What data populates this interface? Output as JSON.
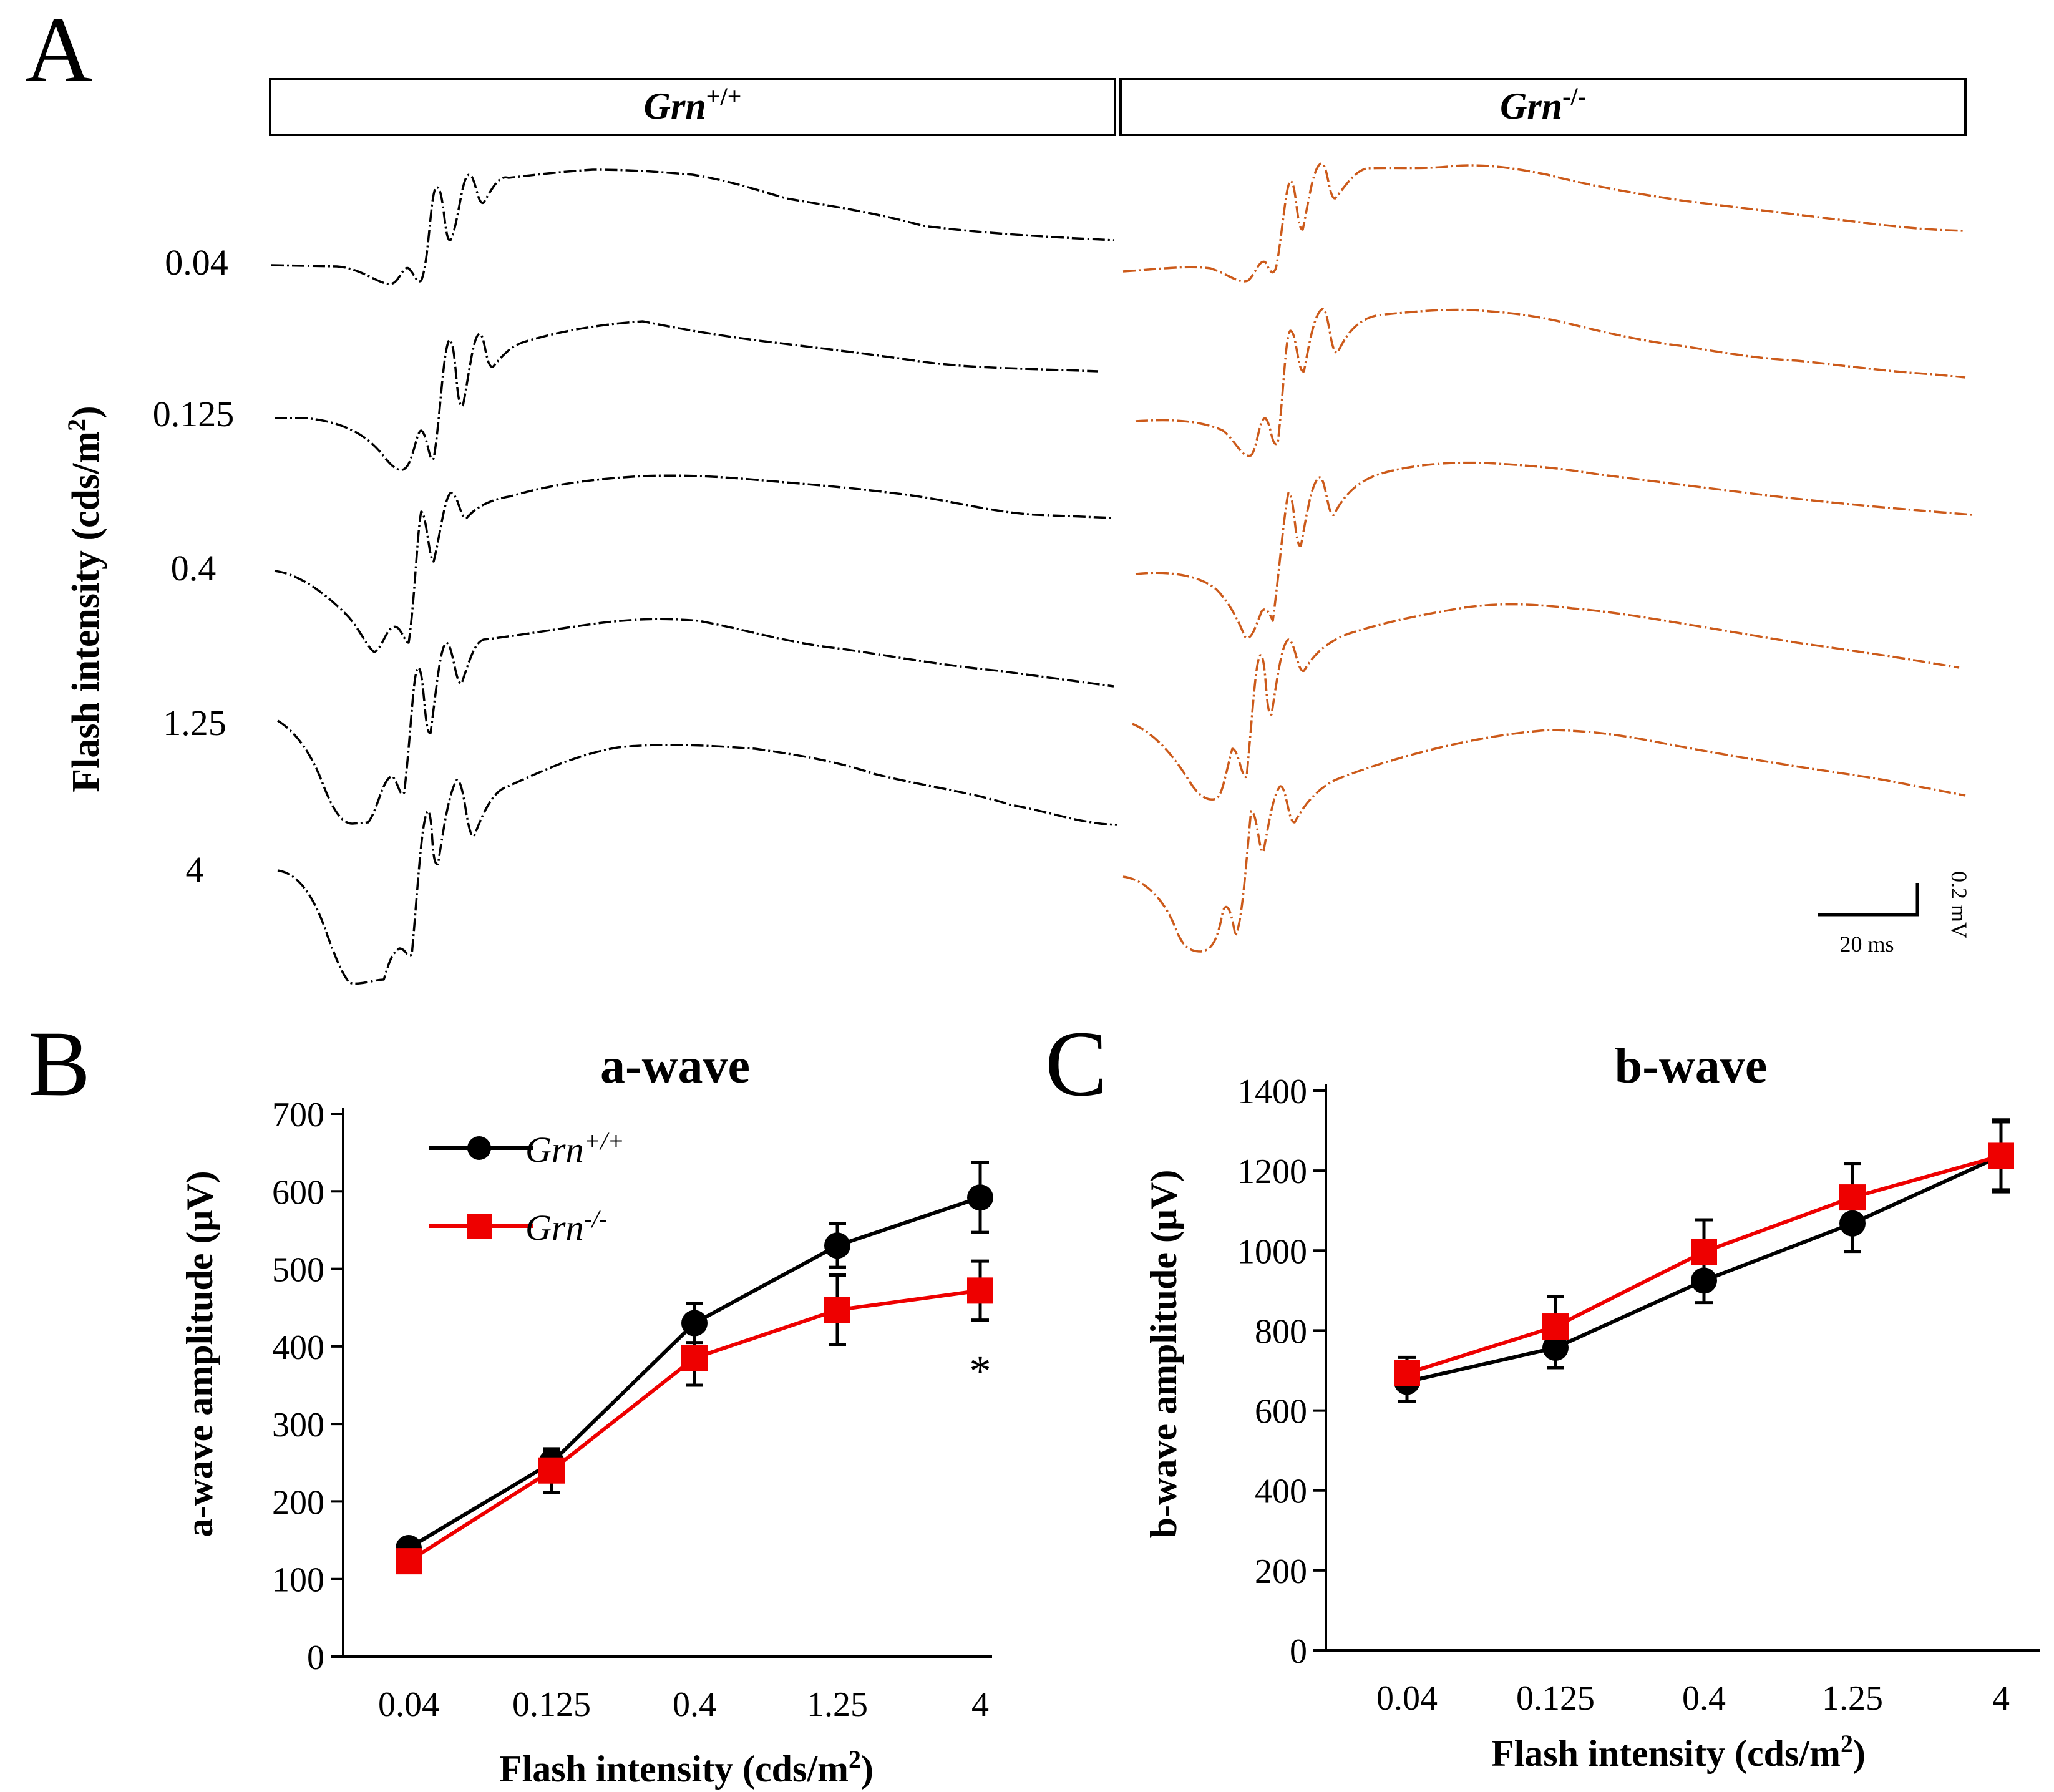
{
  "panels": {
    "a_letter": "A",
    "b_letter": "B",
    "c_letter": "C"
  },
  "genotypes": {
    "wt": {
      "italic": "Grn",
      "sup": "+/+",
      "color": "#000000"
    },
    "ko": {
      "italic": "Grn",
      "sup": "-/-",
      "color": "#cc5a1a"
    }
  },
  "traces": {
    "ylabel": "Flash intensity (cds/m",
    "ylabel_sup": "2",
    "ylabel_end": ")",
    "intensities": [
      "0.04",
      "0.125",
      "0.4",
      "1.25",
      "4"
    ],
    "scale_time": "20 ms",
    "scale_voltage": "0.2 mV"
  },
  "chart_data": [
    {
      "type": "line",
      "title": "a-wave",
      "categories": [
        "0.04",
        "0.125",
        "0.4",
        "1.25",
        "4"
      ],
      "xlabel": "Flash intensity (cds/m",
      "xlabel_sup": "2",
      "xlabel_end": ")",
      "ylabel": "a-wave amplitude (μV)",
      "ylim": [
        0,
        700
      ],
      "yticks": [
        0,
        100,
        200,
        300,
        400,
        500,
        600,
        700
      ],
      "series": [
        {
          "name": "Grn+/+",
          "label_italic": "Grn",
          "label_sup": "+/+",
          "color": "#000000",
          "marker": "circle",
          "values": [
            140,
            250,
            430,
            530,
            592
          ],
          "errors": [
            10,
            15,
            25,
            28,
            45
          ]
        },
        {
          "name": "Grn-/-",
          "label_italic": "Grn",
          "label_sup": "-/-",
          "color": "#ee0000",
          "marker": "square",
          "values": [
            123,
            240,
            385,
            447,
            472
          ],
          "errors": [
            8,
            28,
            35,
            45,
            38
          ]
        }
      ],
      "annotations": [
        {
          "category": "4",
          "text": "*"
        }
      ]
    },
    {
      "type": "line",
      "title": "b-wave",
      "categories": [
        "0.04",
        "0.125",
        "0.4",
        "1.25",
        "4"
      ],
      "xlabel": "Flash intensity (cds/m",
      "xlabel_sup": "2",
      "xlabel_end": ")",
      "ylabel": "b-wave amplitude (μV)",
      "ylim": [
        0,
        1400
      ],
      "yticks": [
        0,
        200,
        400,
        600,
        800,
        1000,
        1200,
        1400
      ],
      "series": [
        {
          "name": "Grn+/+",
          "color": "#000000",
          "marker": "circle",
          "values": [
            672,
            757,
            925,
            1068,
            1237
          ],
          "errors": [
            50,
            50,
            55,
            70,
            90
          ]
        },
        {
          "name": "Grn-/-",
          "color": "#ee0000",
          "marker": "square",
          "values": [
            693,
            810,
            997,
            1133,
            1237
          ],
          "errors": [
            40,
            75,
            80,
            85,
            85
          ]
        }
      ]
    }
  ]
}
